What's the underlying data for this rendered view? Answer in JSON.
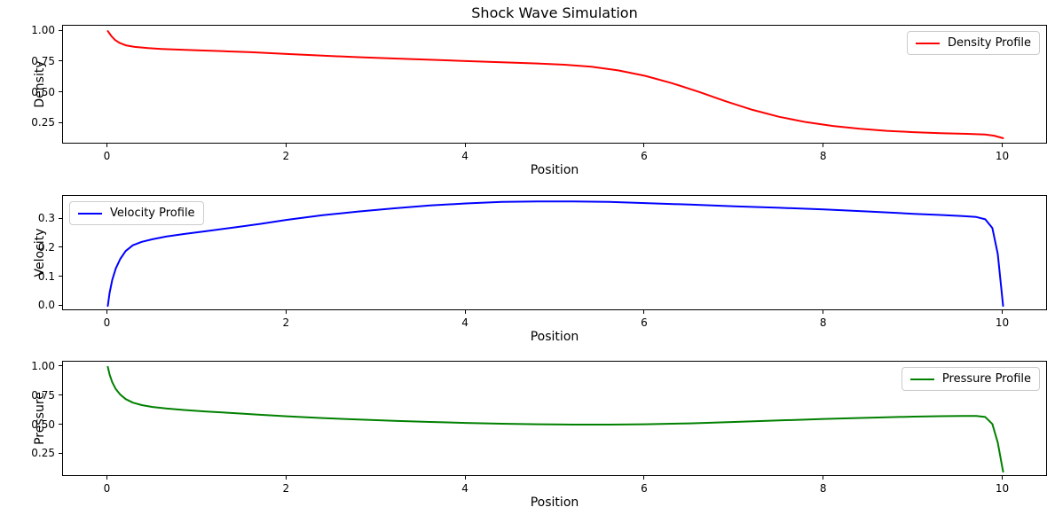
{
  "title": "Shock Wave Simulation",
  "chart_data": [
    {
      "type": "line",
      "xlabel": "Position",
      "ylabel": "Density",
      "xlim": [
        -0.5,
        10.5
      ],
      "ylim": [
        0.081,
        1.044
      ],
      "grid": false,
      "xticks": {
        "values": [
          0,
          2,
          4,
          6,
          8,
          10
        ],
        "labels": [
          "0",
          "2",
          "4",
          "6",
          "8",
          "10"
        ]
      },
      "yticks": {
        "values": [
          0.25,
          0.5,
          0.75,
          1.0
        ],
        "labels": [
          "0.25",
          "0.50",
          "0.75",
          "1.00"
        ]
      },
      "legend": {
        "position": "upper-right"
      },
      "series": [
        {
          "name": "Density Profile",
          "color": "#ff0000",
          "x": [
            0,
            0.04,
            0.08,
            0.13,
            0.2,
            0.3,
            0.45,
            0.6,
            0.8,
            1.0,
            1.3,
            1.6,
            2.0,
            2.4,
            2.8,
            3.2,
            3.6,
            4.0,
            4.4,
            4.8,
            5.1,
            5.4,
            5.7,
            6.0,
            6.3,
            6.6,
            6.9,
            7.2,
            7.5,
            7.8,
            8.1,
            8.4,
            8.7,
            9.0,
            9.3,
            9.6,
            9.8,
            9.9,
            10.0
          ],
          "y": [
            1.0,
            0.96,
            0.93,
            0.905,
            0.885,
            0.872,
            0.862,
            0.856,
            0.85,
            0.845,
            0.837,
            0.829,
            0.815,
            0.801,
            0.789,
            0.778,
            0.768,
            0.757,
            0.748,
            0.738,
            0.728,
            0.712,
            0.682,
            0.638,
            0.578,
            0.508,
            0.432,
            0.362,
            0.305,
            0.262,
            0.231,
            0.208,
            0.192,
            0.181,
            0.173,
            0.167,
            0.162,
            0.152,
            0.132
          ]
        }
      ]
    },
    {
      "type": "line",
      "xlabel": "Position",
      "ylabel": "Velocity",
      "xlim": [
        -0.5,
        10.5
      ],
      "ylim": [
        -0.018,
        0.381
      ],
      "grid": false,
      "xticks": {
        "values": [
          0,
          2,
          4,
          6,
          8,
          10
        ],
        "labels": [
          "0",
          "2",
          "4",
          "6",
          "8",
          "10"
        ]
      },
      "yticks": {
        "values": [
          0.0,
          0.1,
          0.2,
          0.3
        ],
        "labels": [
          "0.0",
          "0.1",
          "0.2",
          "0.3"
        ]
      },
      "legend": {
        "position": "upper-left"
      },
      "series": [
        {
          "name": "Velocity Profile",
          "color": "#0000ff",
          "x": [
            0,
            0.02,
            0.05,
            0.09,
            0.14,
            0.2,
            0.28,
            0.38,
            0.5,
            0.65,
            0.85,
            1.1,
            1.4,
            1.7,
            2.0,
            2.4,
            2.8,
            3.2,
            3.6,
            4.0,
            4.4,
            4.8,
            5.2,
            5.6,
            6.0,
            6.5,
            7.0,
            7.5,
            8.0,
            8.5,
            9.0,
            9.3,
            9.55,
            9.7,
            9.8,
            9.88,
            9.94,
            10.0
          ],
          "y": [
            0.0,
            0.045,
            0.09,
            0.13,
            0.163,
            0.19,
            0.21,
            0.222,
            0.231,
            0.24,
            0.249,
            0.259,
            0.271,
            0.284,
            0.298,
            0.314,
            0.327,
            0.338,
            0.348,
            0.355,
            0.36,
            0.362,
            0.362,
            0.36,
            0.356,
            0.351,
            0.345,
            0.34,
            0.334,
            0.327,
            0.319,
            0.315,
            0.311,
            0.308,
            0.3,
            0.27,
            0.18,
            0.0
          ]
        }
      ]
    },
    {
      "type": "line",
      "xlabel": "Position",
      "ylabel": "Pressure",
      "xlim": [
        -0.5,
        10.5
      ],
      "ylim": [
        0.055,
        1.045
      ],
      "grid": false,
      "xticks": {
        "values": [
          0,
          2,
          4,
          6,
          8,
          10
        ],
        "labels": [
          "0",
          "2",
          "4",
          "6",
          "8",
          "10"
        ]
      },
      "yticks": {
        "values": [
          0.25,
          0.5,
          0.75,
          1.0
        ],
        "labels": [
          "0.25",
          "0.50",
          "0.75",
          "1.00"
        ]
      },
      "legend": {
        "position": "upper-right"
      },
      "series": [
        {
          "name": "Pressure Profile",
          "color": "#008000",
          "x": [
            0,
            0.02,
            0.05,
            0.09,
            0.14,
            0.2,
            0.28,
            0.38,
            0.5,
            0.65,
            0.85,
            1.1,
            1.4,
            1.7,
            2.0,
            2.4,
            2.8,
            3.2,
            3.6,
            4.0,
            4.4,
            4.8,
            5.2,
            5.6,
            6.0,
            6.5,
            7.0,
            7.5,
            8.0,
            8.5,
            9.0,
            9.3,
            9.55,
            9.7,
            9.8,
            9.88,
            9.94,
            10.0
          ],
          "y": [
            1.0,
            0.935,
            0.868,
            0.81,
            0.762,
            0.724,
            0.693,
            0.672,
            0.656,
            0.643,
            0.63,
            0.617,
            0.603,
            0.589,
            0.576,
            0.561,
            0.548,
            0.537,
            0.527,
            0.519,
            0.512,
            0.507,
            0.504,
            0.504,
            0.507,
            0.515,
            0.527,
            0.54,
            0.553,
            0.564,
            0.573,
            0.577,
            0.579,
            0.578,
            0.57,
            0.51,
            0.35,
            0.1
          ]
        }
      ]
    }
  ]
}
